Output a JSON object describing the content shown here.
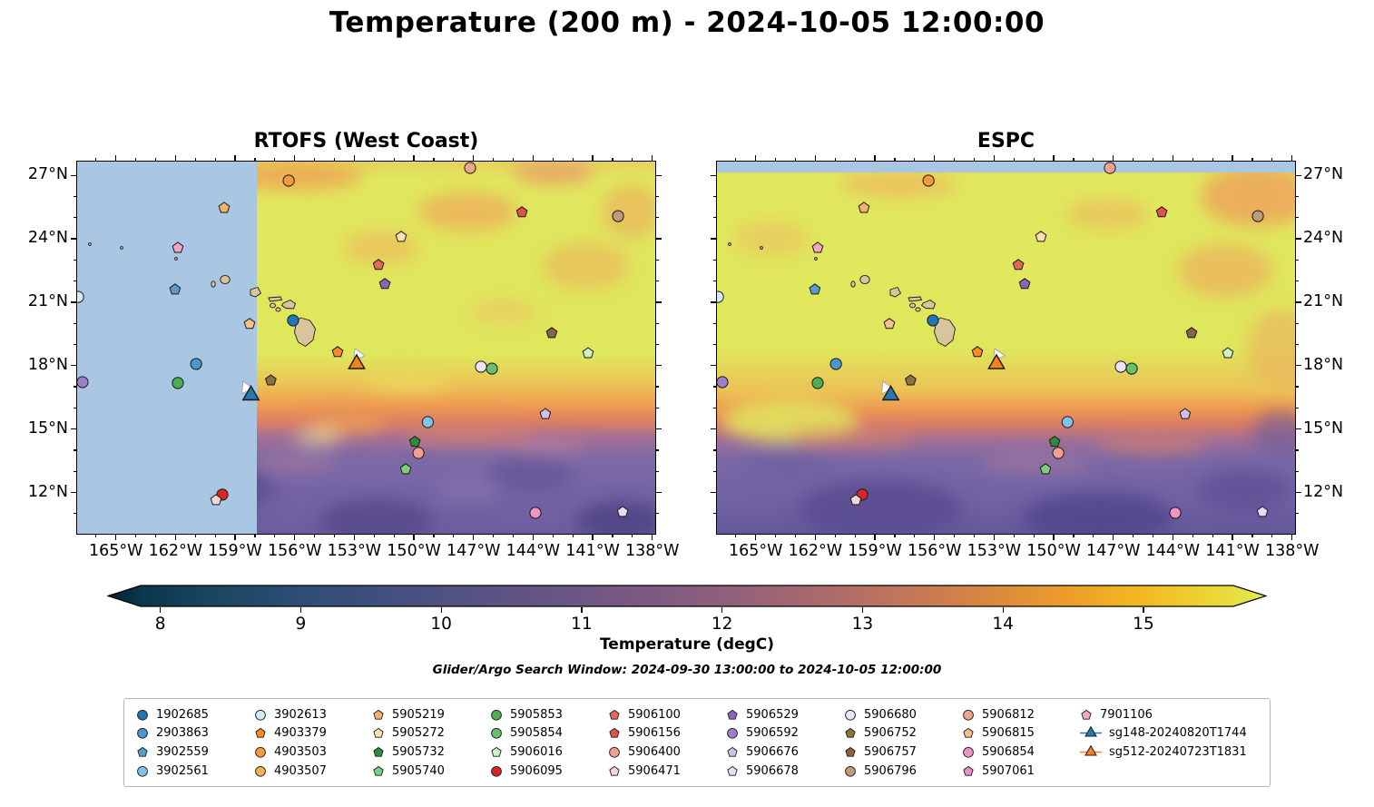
{
  "title": "Temperature (200 m) - 2024-10-05 12:00:00",
  "panels": [
    {
      "title": "RTOFS (West Coast)"
    },
    {
      "title": "ESPC"
    }
  ],
  "search_window": "Glider/Argo Search Window: 2024-09-30 13:00:00 to 2024-10-05 12:00:00",
  "colorbar": {
    "label": "Temperature (degC)",
    "ticks": [
      8,
      9,
      10,
      11,
      12,
      13,
      14,
      15
    ],
    "vmin": 7.86,
    "vmax": 15.64,
    "extend": "both"
  },
  "axes": {
    "lon_tick_values": [
      -165,
      -162,
      -159,
      -156,
      -153,
      -150,
      -147,
      -144,
      -141,
      -138
    ],
    "lon_tick_labels": [
      "165°W",
      "162°W",
      "159°W",
      "156°W",
      "153°W",
      "150°W",
      "147°W",
      "144°W",
      "141°W",
      "138°W"
    ],
    "lat_tick_values": [
      27,
      24,
      21,
      18,
      15,
      12
    ],
    "lat_tick_labels": [
      "27°N",
      "24°N",
      "21°N",
      "18°N",
      "15°N",
      "12°N"
    ]
  },
  "legend": {
    "columns": [
      [
        "1902685",
        "2903863",
        "3902559",
        "3902561"
      ],
      [
        "3902613",
        "4903379",
        "4903503",
        "4903507"
      ],
      [
        "5905219",
        "5905272",
        "5905732",
        "5905740"
      ],
      [
        "5905853",
        "5905854",
        "5906016",
        "5906095"
      ],
      [
        "5906100",
        "5906156",
        "5906400",
        "5906471"
      ],
      [
        "5906529",
        "5906592",
        "5906676",
        "5906678"
      ],
      [
        "5906680",
        "5906752",
        "5906757",
        "5906796"
      ],
      [
        "5906812",
        "5906815",
        "5906854",
        "5907061"
      ],
      [
        "7901106",
        "sg148-20240820T1744",
        "sg512-20240723T1831"
      ]
    ]
  },
  "chart_data": {
    "type": "heatmap",
    "subtype": "two filled-contour temperature maps with Argo float / glider scatter overlay",
    "title": "Temperature (200 m) - 2024-10-05 12:00:00",
    "panels": [
      {
        "name": "RTOFS (West Coast)",
        "note": "light-blue no-data mask west of ~158°W"
      },
      {
        "name": "ESPC",
        "note": "light-blue no-data strip north of ~27.1°N"
      }
    ],
    "extent": {
      "lon_min": -166.95,
      "lon_max": -137.85,
      "lat_min": 10.05,
      "lat_max": 27.65
    },
    "colorbar": {
      "label": "Temperature (degC)",
      "ticks": [
        8,
        9,
        10,
        11,
        12,
        13,
        14,
        15
      ],
      "vmin": 7.86,
      "vmax": 15.64,
      "extend": "both"
    },
    "field_colors": {
      "warm_yellow": "#dfe75c",
      "orange_band": "#ef9b51",
      "cool_purple": "#7a68a8",
      "deep_purple": "#4d4184",
      "mask_blue": "#a9c7e2",
      "land_tan": "#d9c59b"
    },
    "legend_position": "bottom",
    "grid": false,
    "floats": [
      {
        "id": "1902685",
        "shape": "circle",
        "color": "#1f77b4"
      },
      {
        "id": "2903863",
        "shape": "circle",
        "color": "#4a97cc"
      },
      {
        "id": "3902559",
        "shape": "pentagon",
        "color": "#5a9ccc"
      },
      {
        "id": "3902561",
        "shape": "circle",
        "color": "#7fc4e8"
      },
      {
        "id": "3902613",
        "shape": "circle",
        "color": "#d4eaf6"
      },
      {
        "id": "4903379",
        "shape": "pentagon",
        "color": "#f5892b"
      },
      {
        "id": "4903503",
        "shape": "circle",
        "color": "#f79a3a"
      },
      {
        "id": "4903507",
        "shape": "circle",
        "color": "#f8b04e"
      },
      {
        "id": "5905219",
        "shape": "pentagon",
        "color": "#f3b36d"
      },
      {
        "id": "5905272",
        "shape": "pentagon",
        "color": "#fbe0b4"
      },
      {
        "id": "5905732",
        "shape": "pentagon",
        "color": "#2e8b3d"
      },
      {
        "id": "5905740",
        "shape": "pentagon",
        "color": "#7ccf7a"
      },
      {
        "id": "5905853",
        "shape": "circle",
        "color": "#4caf50"
      },
      {
        "id": "5905854",
        "shape": "circle",
        "color": "#69c06b"
      },
      {
        "id": "5906016",
        "shape": "pentagon",
        "color": "#cff0c8"
      },
      {
        "id": "5906095",
        "shape": "circle",
        "color": "#d62728"
      },
      {
        "id": "5906100",
        "shape": "pentagon",
        "color": "#e2685a"
      },
      {
        "id": "5906156",
        "shape": "pentagon",
        "color": "#e0524a"
      },
      {
        "id": "5906400",
        "shape": "circle",
        "color": "#f49e92"
      },
      {
        "id": "5906471",
        "shape": "pentagon",
        "color": "#f5d6d8"
      },
      {
        "id": "5906529",
        "shape": "pentagon",
        "color": "#8a63bd"
      },
      {
        "id": "5906592",
        "shape": "circle",
        "color": "#9e7fc9"
      },
      {
        "id": "5906676",
        "shape": "pentagon",
        "color": "#cfc0e8"
      },
      {
        "id": "5906678",
        "shape": "pentagon",
        "color": "#e6dcf5"
      },
      {
        "id": "5906680",
        "shape": "circle",
        "color": "#ece4f8"
      },
      {
        "id": "5906752",
        "shape": "pentagon",
        "color": "#8a7340"
      },
      {
        "id": "5906757",
        "shape": "pentagon",
        "color": "#8a6248"
      },
      {
        "id": "5906796",
        "shape": "circle",
        "color": "#bd9b7d"
      },
      {
        "id": "5906812",
        "shape": "circle",
        "color": "#efa58b"
      },
      {
        "id": "5906815",
        "shape": "pentagon",
        "color": "#f5c08c"
      },
      {
        "id": "5906854",
        "shape": "circle",
        "color": "#f094c4"
      },
      {
        "id": "5907061",
        "shape": "pentagon",
        "color": "#ee8fc6"
      },
      {
        "id": "7901106",
        "shape": "pentagon",
        "color": "#f4a7c4"
      },
      {
        "id": "sg148-20240820T1744",
        "shape": "triangle",
        "color": "#2779b0"
      },
      {
        "id": "sg512-20240723T1831",
        "shape": "triangle",
        "color": "#f58220"
      }
    ],
    "platform_positions": [
      {
        "id": "5906812",
        "lon": -147.17,
        "lat": 27.35
      },
      {
        "id": "4903503",
        "lon": -156.3,
        "lat": 26.75
      },
      {
        "id": "5905219",
        "lon": -159.55,
        "lat": 25.46
      },
      {
        "id": "5906156",
        "lon": -144.56,
        "lat": 25.25
      },
      {
        "id": "5906796",
        "lon": -139.72,
        "lat": 25.07
      },
      {
        "id": "5905272",
        "lon": -150.64,
        "lat": 24.09
      },
      {
        "id": "7901106",
        "lon": -161.88,
        "lat": 23.57
      },
      {
        "id": "5906100",
        "lon": -151.78,
        "lat": 22.76
      },
      {
        "id": "5906529",
        "lon": -151.46,
        "lat": 21.86
      },
      {
        "id": "3902613",
        "lon": -166.9,
        "lat": 21.25
      },
      {
        "id": "3902559",
        "lon": -162.02,
        "lat": 21.6
      },
      {
        "id": "5906815",
        "lon": -158.27,
        "lat": 19.97
      },
      {
        "id": "1902685",
        "lon": -156.08,
        "lat": 20.14
      },
      {
        "id": "4903379",
        "lon": -153.84,
        "lat": 18.64
      },
      {
        "id": "5906757",
        "lon": -143.06,
        "lat": 19.54
      },
      {
        "id": "5906016",
        "lon": -141.23,
        "lat": 18.59
      },
      {
        "id": "5906680",
        "lon": -146.62,
        "lat": 17.95
      },
      {
        "id": "5905854",
        "lon": -146.07,
        "lat": 17.86
      },
      {
        "id": "2903863",
        "lon": -160.96,
        "lat": 18.08
      },
      {
        "id": "5906592",
        "lon": -166.68,
        "lat": 17.22
      },
      {
        "id": "5905853",
        "lon": -161.88,
        "lat": 17.18
      },
      {
        "id": "5906752",
        "lon": -157.2,
        "lat": 17.3
      },
      {
        "id": "3902561",
        "lon": -149.3,
        "lat": 15.33
      },
      {
        "id": "5906676",
        "lon": -143.38,
        "lat": 15.71
      },
      {
        "id": "5905732",
        "lon": -149.95,
        "lat": 14.4
      },
      {
        "id": "5906400",
        "lon": -149.77,
        "lat": 13.87
      },
      {
        "id": "5905740",
        "lon": -150.41,
        "lat": 13.1
      },
      {
        "id": "5906095",
        "lon": -159.64,
        "lat": 11.9
      },
      {
        "id": "5906471",
        "lon": -159.96,
        "lat": 11.64
      },
      {
        "id": "5906854",
        "lon": -143.88,
        "lat": 11.04
      },
      {
        "id": "5906678",
        "lon": -139.49,
        "lat": 11.08
      },
      {
        "id": "sg148-20240820T1744",
        "lon": -158.2,
        "lat": 16.6
      },
      {
        "id": "sg512-20240723T1831",
        "lon": -152.88,
        "lat": 18.08
      }
    ],
    "glider_extra_marks": [
      {
        "lon": -158.45,
        "lat": 16.95
      },
      {
        "lon": -152.82,
        "lat": 18.5
      }
    ]
  }
}
